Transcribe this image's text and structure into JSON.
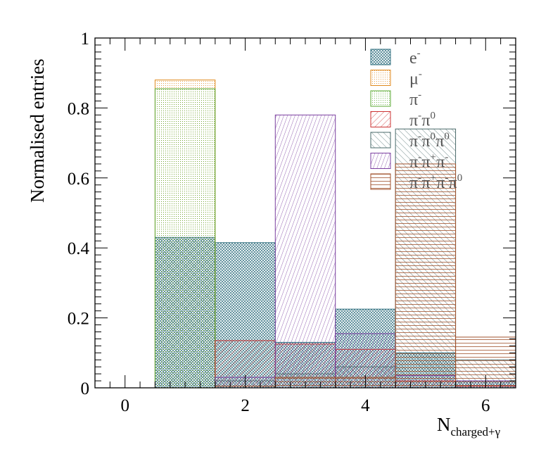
{
  "chart_data": {
    "type": "bar",
    "title": "",
    "xlabel_main": "N",
    "xlabel_sub": "charged+γ",
    "ylabel": "Normalised entries",
    "xlim": [
      -0.5,
      6.5
    ],
    "ylim": [
      0,
      1
    ],
    "x_ticks": [
      "0",
      "2",
      "4",
      "6"
    ],
    "y_ticks": [
      "0",
      "0.2",
      "0.4",
      "0.6",
      "0.8",
      "1"
    ],
    "bins": [
      0,
      1,
      2,
      3,
      4,
      5,
      6
    ],
    "legend_position": "top-right",
    "series": [
      {
        "name": "e-",
        "label_base": "e",
        "label_sup": "-",
        "color": "#2f6f7f",
        "pattern": "crosshatch",
        "values": [
          0,
          0.43,
          0.415,
          0.13,
          0.225,
          0.1,
          0.02
        ]
      },
      {
        "name": "mu-",
        "label_base": "μ",
        "label_sup": "-",
        "color": "#e08a1e",
        "pattern": "dots",
        "values": [
          0,
          0.88,
          0,
          0,
          0,
          0,
          0
        ]
      },
      {
        "name": "pi-",
        "label_base": "π",
        "label_sup": "-",
        "color": "#5aa832",
        "pattern": "dots",
        "values": [
          0,
          0.855,
          0,
          0,
          0,
          0,
          0
        ]
      },
      {
        "name": "pi-pi0",
        "label_base": "π",
        "label_sup": "-",
        "label_base2": "π",
        "label_sup2": "0",
        "color": "#cc3333",
        "pattern": "diag",
        "values": [
          0,
          0,
          0.135,
          0.125,
          0.11,
          0.02,
          0.005
        ]
      },
      {
        "name": "pi-pi0pi0",
        "label_base": "π",
        "label_sup": "-",
        "label_base2": "π",
        "label_sup2": "0",
        "label_base3": "π",
        "label_sup3": "0",
        "color": "#4a6a6a",
        "pattern": "antidiag",
        "values": [
          0,
          0,
          0.02,
          0.04,
          0.06,
          0.74,
          0.08
        ]
      },
      {
        "name": "pi-pi+pi-",
        "label_base": "π",
        "label_sup": "-",
        "label_base2": "π",
        "label_sup2": "+",
        "label_base3": "π",
        "label_sup3": "-",
        "color": "#7b3fa0",
        "pattern": "vdiag",
        "values": [
          0,
          0,
          0.03,
          0.78,
          0.155,
          0.035,
          0.02
        ]
      },
      {
        "name": "pi-pi+pi-pi0",
        "label_base": "π",
        "label_sup": "-",
        "label_base2": "π",
        "label_sup2": "+",
        "label_base3": "π",
        "label_sup3": "-",
        "label_base4": "π",
        "label_sup4": "0",
        "color": "#a0522d",
        "pattern": "horiz",
        "values": [
          0,
          0,
          0.005,
          0.03,
          0.03,
          0.64,
          0.145
        ]
      }
    ]
  }
}
